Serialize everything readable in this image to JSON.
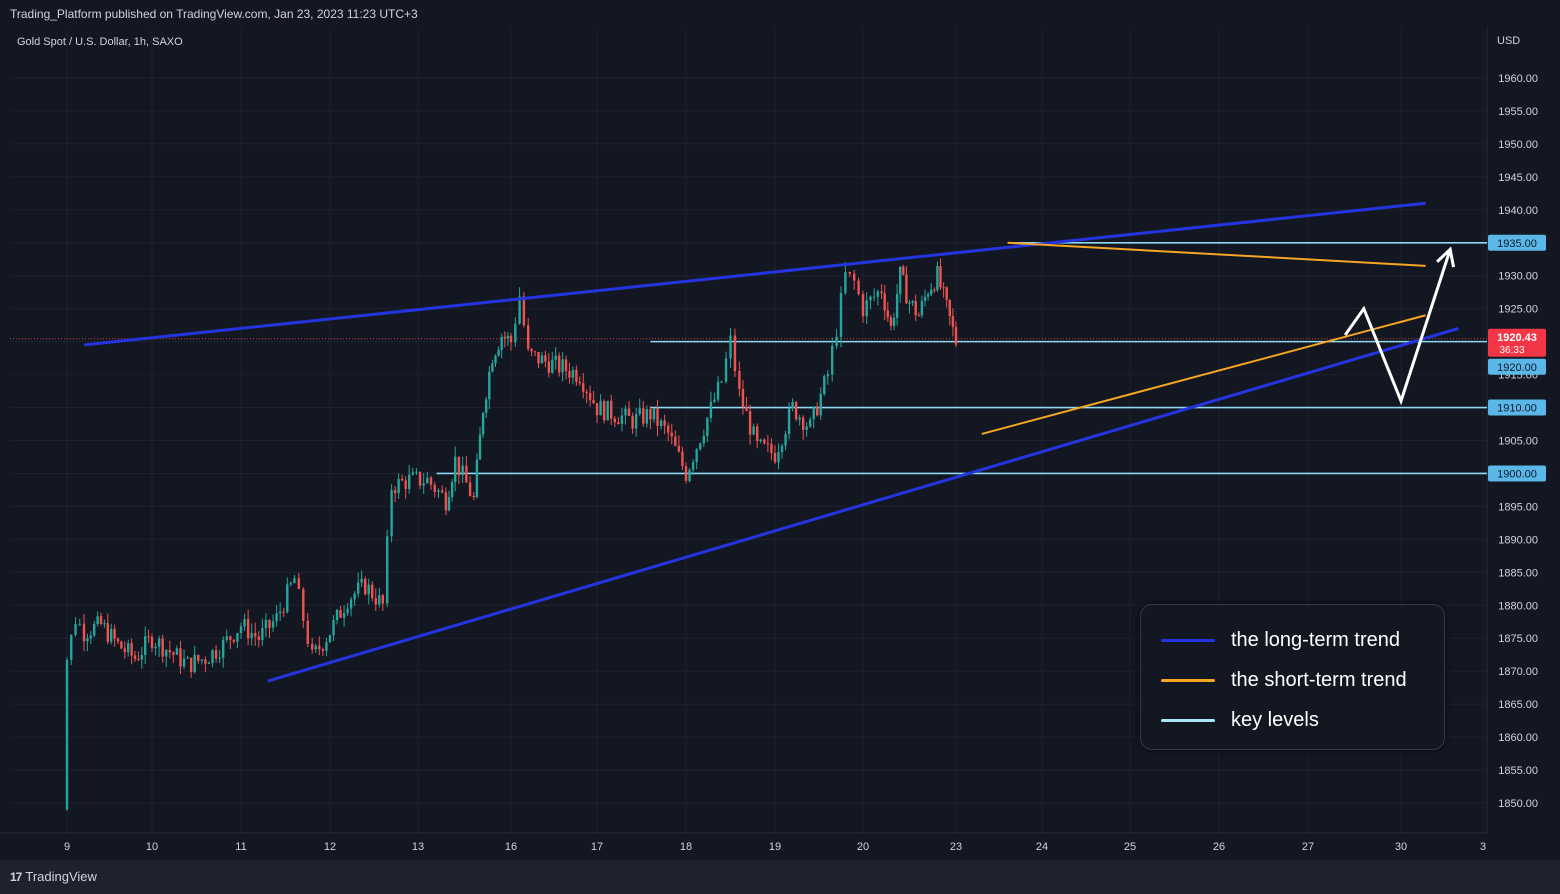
{
  "header": {
    "publish_line": "Trading_Platform published on TradingView.com, Jan 23, 2023 11:23 UTC+3",
    "symbol_line": "Gold Spot / U.S. Dollar, 1h, SAXO",
    "currency": "USD"
  },
  "footer": {
    "brand": "TradingView",
    "brand_icon": "tradingview-logo-icon"
  },
  "chart_data": {
    "type": "candlestick",
    "instrument": "Gold Spot / U.S. Dollar",
    "interval": "1h",
    "source": "SAXO",
    "y_axis": {
      "min": 1847,
      "max": 1967,
      "unit": "USD",
      "ticks": [
        1850,
        1855,
        1860,
        1865,
        1870,
        1875,
        1880,
        1885,
        1890,
        1895,
        1900,
        1905,
        1910,
        1915,
        1920,
        1925,
        1930,
        1935,
        1940,
        1945,
        1950,
        1955,
        1960
      ],
      "tick_labels": [
        "1850.00",
        "1855.00",
        "1860.00",
        "1865.00",
        "1870.00",
        "1875.00",
        "1880.00",
        "1885.00",
        "1890.00",
        "1895.00",
        "1900.00",
        "1905.00",
        "1910.00",
        "1915.00",
        "1920.00",
        "1925.00",
        "1930.00",
        "1935.00",
        "1940.00",
        "1945.00",
        "1950.00",
        "1955.00",
        "1960.00"
      ]
    },
    "x_axis": {
      "date_labels": [
        "9",
        "10",
        "11",
        "12",
        "13",
        "16",
        "17",
        "18",
        "19",
        "20",
        "23",
        "24",
        "25",
        "26",
        "27",
        "30",
        "3"
      ]
    },
    "candles_close_path": [
      [
        8.6,
        1851
      ],
      [
        8.7,
        1862
      ],
      [
        8.8,
        1866
      ],
      [
        8.9,
        1870
      ],
      [
        9.0,
        1872
      ],
      [
        9.1,
        1878
      ],
      [
        9.2,
        1876
      ],
      [
        9.4,
        1877
      ],
      [
        9.6,
        1874
      ],
      [
        9.8,
        1872
      ],
      [
        10.0,
        1875
      ],
      [
        10.2,
        1873
      ],
      [
        10.4,
        1871
      ],
      [
        10.6,
        1872
      ],
      [
        10.8,
        1874
      ],
      [
        11.0,
        1877
      ],
      [
        11.2,
        1875
      ],
      [
        11.4,
        1878
      ],
      [
        11.6,
        1884
      ],
      [
        11.7,
        1878
      ],
      [
        11.8,
        1872
      ],
      [
        12.0,
        1876
      ],
      [
        12.2,
        1881
      ],
      [
        12.4,
        1883
      ],
      [
        12.6,
        1880
      ],
      [
        12.7,
        1898
      ],
      [
        12.9,
        1899
      ],
      [
        13.1,
        1899
      ],
      [
        13.3,
        1896
      ],
      [
        13.4,
        1902
      ],
      [
        13.6,
        1896
      ],
      [
        13.7,
        1910
      ],
      [
        13.8,
        1918
      ],
      [
        13.9,
        1921
      ],
      [
        14.0,
        1920
      ],
      [
        14.1,
        1927
      ],
      [
        14.2,
        1918
      ],
      [
        14.4,
        1917
      ],
      [
        14.6,
        1916
      ],
      [
        14.8,
        1915
      ],
      [
        15.0,
        1910
      ],
      [
        15.2,
        1909
      ],
      [
        15.4,
        1908
      ],
      [
        15.6,
        1909
      ],
      [
        15.8,
        1906
      ],
      [
        16.0,
        1900
      ],
      [
        16.2,
        1907
      ],
      [
        16.4,
        1914
      ],
      [
        16.5,
        1920
      ],
      [
        16.6,
        1912
      ],
      [
        16.8,
        1904
      ],
      [
        17.0,
        1903
      ],
      [
        17.2,
        1910
      ],
      [
        17.4,
        1907
      ],
      [
        17.6,
        1915
      ],
      [
        17.7,
        1922
      ],
      [
        17.8,
        1930
      ],
      [
        17.9,
        1929
      ],
      [
        18.0,
        1925
      ],
      [
        18.2,
        1928
      ],
      [
        18.3,
        1922
      ],
      [
        18.4,
        1930
      ],
      [
        18.5,
        1926
      ],
      [
        18.6,
        1924
      ],
      [
        18.7,
        1928
      ],
      [
        18.8,
        1930
      ],
      [
        18.9,
        1925
      ],
      [
        19.0,
        1920
      ]
    ],
    "annotations": {
      "long_term_trend_lines": [
        {
          "from": [
            9.2,
            1919.5
          ],
          "to": [
            24.3,
            1941
          ]
        },
        {
          "from": [
            11.3,
            1868.5
          ],
          "to": [
            24.7,
            1922
          ]
        }
      ],
      "short_term_trend_lines": [
        {
          "from": [
            19.6,
            1935
          ],
          "to": [
            24.3,
            1931.5
          ]
        },
        {
          "from": [
            19.3,
            1906
          ],
          "to": [
            24.3,
            1924
          ]
        }
      ],
      "key_levels": [
        {
          "price": 1935,
          "label": "1935.00",
          "from_x": 19.6
        },
        {
          "price": 1920,
          "label": "1920.00",
          "from_x": 15.6
        },
        {
          "price": 1910,
          "label": "1910.00",
          "from_x": 15.6
        },
        {
          "price": 1900,
          "label": "1900.00",
          "from_x": 13.2
        }
      ],
      "projection_path": [
        [
          23.4,
          1921
        ],
        [
          23.6,
          1925
        ],
        [
          24.0,
          1911
        ],
        [
          24.6,
          1934
        ]
      ]
    },
    "last_price": {
      "value": "1920.43",
      "countdown": "36:33",
      "price": 1920.43
    },
    "legend": [
      {
        "label": "the long-term trend",
        "color": "#2434e0"
      },
      {
        "label": "the short-term trend",
        "color": "#f5a623"
      },
      {
        "label": "key levels",
        "color": "#a7e6f7"
      }
    ],
    "colors": {
      "background": "#131722",
      "up": "#26a69a",
      "down": "#ef5350",
      "long_trend": "#2434e0",
      "short_trend": "#f5a623",
      "key_level": "#8fd8f2",
      "key_label_bg": "#5bb7e8",
      "last_price_bg": "#f23645",
      "projection": "#ffffff",
      "grid": "#1e2230"
    }
  }
}
